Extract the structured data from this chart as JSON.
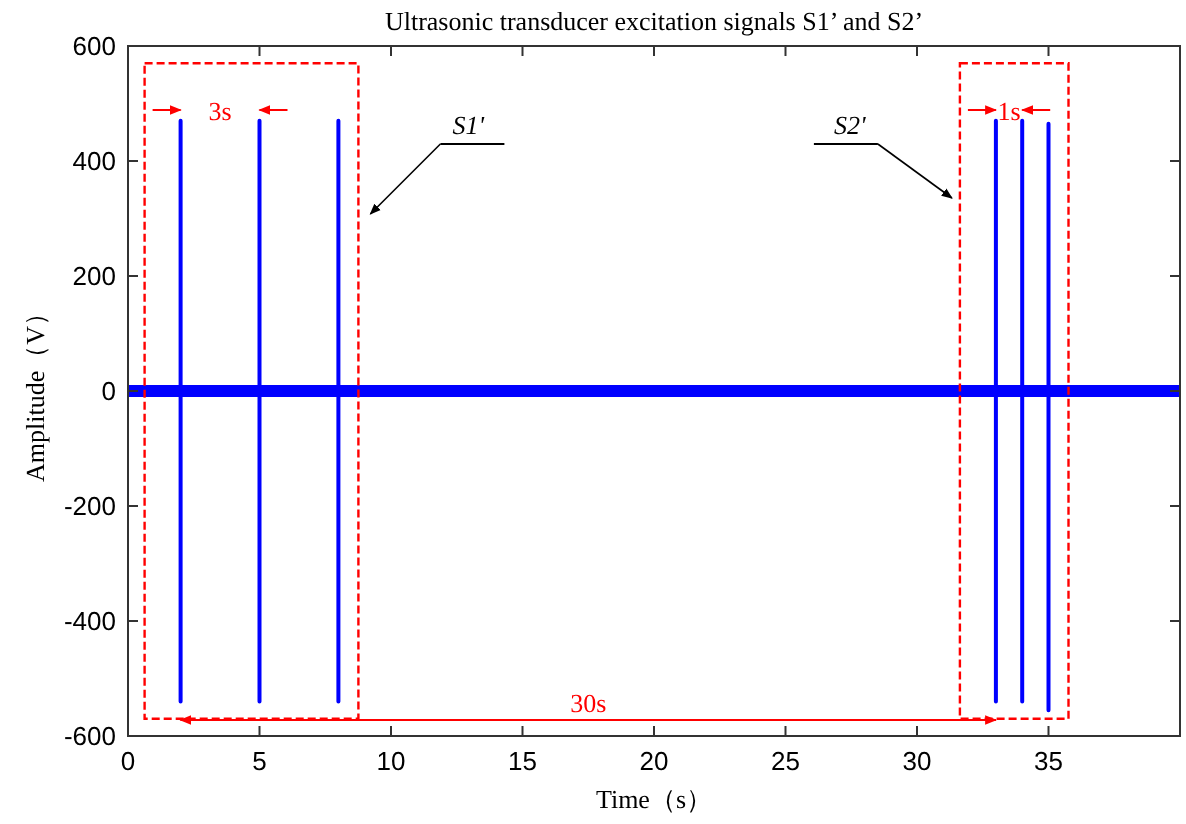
{
  "chart_data": {
    "type": "line",
    "title": "Ultrasonic transducer excitation signals S1’ and S2’",
    "xlabel": "Time（s）",
    "ylabel": "Amplitude（V）",
    "xlim": [
      0,
      40
    ],
    "ylim": [
      -600,
      600
    ],
    "xticks": [
      0,
      5,
      10,
      15,
      20,
      25,
      30,
      35
    ],
    "yticks": [
      -600,
      -400,
      -200,
      0,
      200,
      400,
      600
    ],
    "grid": false,
    "marker": "none",
    "line_style": "solid",
    "ref_lines": [
      {
        "axis": "y",
        "value": 0,
        "color": "#0000ff"
      }
    ],
    "series": [
      {
        "color": "#0000ff",
        "x": [
          0,
          2,
          2,
          2,
          2,
          5,
          5,
          5,
          5,
          8,
          8,
          8,
          8,
          33,
          33,
          33,
          33,
          34,
          34,
          34,
          34,
          35,
          35,
          35,
          35,
          40
        ],
        "values": [
          0,
          0,
          470,
          -540,
          0,
          0,
          470,
          -540,
          0,
          0,
          470,
          -540,
          0,
          0,
          470,
          -540,
          0,
          0,
          470,
          -540,
          0,
          0,
          465,
          -555,
          0,
          0
        ]
      }
    ],
    "annotations": [
      "S1'",
      "S2'",
      "3s",
      "1s",
      "30s"
    ]
  }
}
